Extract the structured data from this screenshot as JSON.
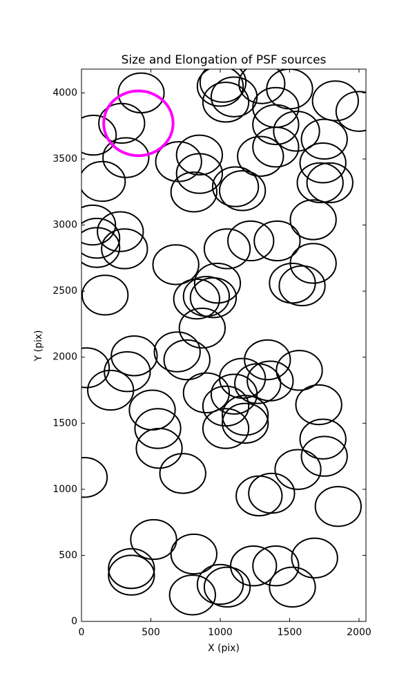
{
  "chart_data": {
    "type": "ellipse",
    "title": "Size and Elongation of PSF sources",
    "x_label": "X (pix)",
    "y_label": "Y (pix)",
    "xlim": [
      0,
      2050
    ],
    "ylim": [
      0,
      4180
    ],
    "xticks": [
      0,
      500,
      1000,
      1500,
      2000
    ],
    "yticks": [
      0,
      500,
      1000,
      1500,
      2000,
      2500,
      3000,
      3500,
      4000
    ],
    "series": [
      {
        "color": "#000000",
        "width": 330,
        "height": 300,
        "linewidth": 2,
        "x": [
          430,
          85,
          290,
          320,
          150,
          700,
          850,
          850,
          810,
          1020,
          1040,
          1000,
          1100,
          1300,
          1500,
          1400,
          1400,
          1550,
          1750,
          1290,
          1400,
          1740,
          1720,
          1790,
          1830,
          2000,
          1110,
          1160,
          1670,
          1410,
          1220,
          1050,
          680,
          1670,
          1520,
          1590,
          980,
          900,
          830,
          950,
          870,
          170,
          80,
          110,
          110,
          280,
          310,
          35,
          210,
          380,
          330,
          690,
          760,
          510,
          550,
          560,
          730,
          900,
          1040,
          1100,
          1160,
          1270,
          1340,
          1360,
          1570,
          1710,
          1040,
          1180,
          1180,
          1280,
          1370,
          1560,
          1740,
          1750,
          1850,
          20,
          520,
          810,
          800,
          1000,
          1050,
          1240,
          1400,
          1520,
          1680,
          360,
          360
        ],
        "y": [
          4000,
          3680,
          3770,
          3510,
          3330,
          3480,
          3530,
          3390,
          3250,
          4080,
          3930,
          4050,
          3970,
          4070,
          4030,
          3890,
          3760,
          3710,
          3650,
          3520,
          3590,
          3470,
          3320,
          3320,
          3940,
          3860,
          3290,
          3260,
          3040,
          2880,
          2880,
          2820,
          2700,
          2710,
          2560,
          2540,
          2560,
          2460,
          2440,
          2450,
          2220,
          2470,
          3000,
          2900,
          2830,
          2950,
          2820,
          1920,
          1750,
          2010,
          1890,
          2040,
          1980,
          1600,
          1460,
          1310,
          1120,
          1730,
          1630,
          1720,
          1840,
          1800,
          1980,
          1820,
          1900,
          1640,
          1460,
          1560,
          1500,
          950,
          970,
          1150,
          1380,
          1250,
          870,
          1090,
          620,
          510,
          200,
          280,
          260,
          420,
          420,
          260,
          480,
          400,
          350
        ]
      },
      {
        "color": "#ff00ff",
        "width": 500,
        "height": 490,
        "linewidth": 4,
        "x": [
          410
        ],
        "y": [
          3770
        ]
      }
    ]
  }
}
